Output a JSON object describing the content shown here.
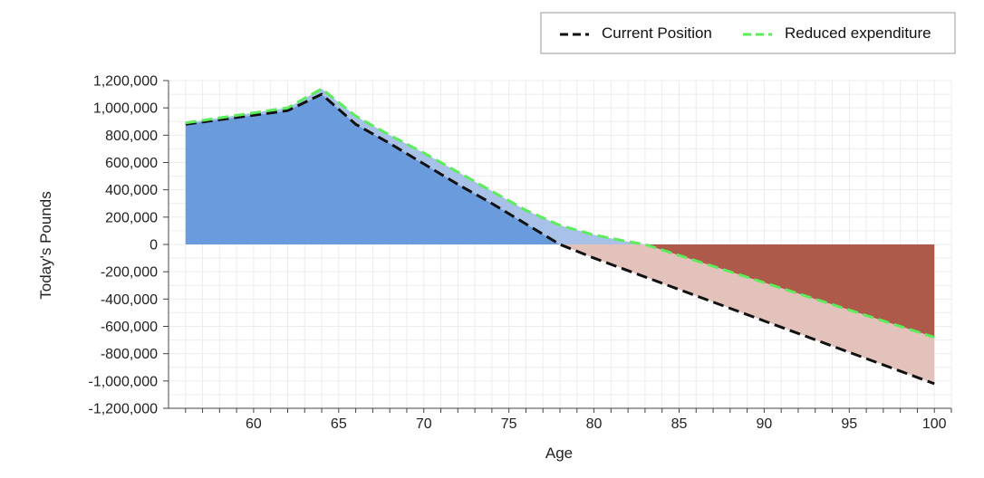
{
  "chart_data": {
    "type": "area",
    "xlabel": "Age",
    "ylabel": "Today's Pounds",
    "xlim": [
      55,
      101
    ],
    "ylim": [
      -1200000,
      1200000
    ],
    "x_ticks": [
      60,
      65,
      70,
      75,
      80,
      85,
      90,
      95,
      100
    ],
    "x_tick_labels": [
      "60",
      "65",
      "70",
      "75",
      "80",
      "85",
      "90",
      "95",
      "100"
    ],
    "y_ticks": [
      1200000,
      1000000,
      800000,
      600000,
      400000,
      200000,
      0,
      -200000,
      -400000,
      -600000,
      -800000,
      -1000000,
      -1200000
    ],
    "y_tick_labels": [
      "1,200,000",
      "1,000,000",
      "800,000",
      "600,000",
      "400,000",
      "200,000",
      "0",
      "-200,000",
      "-400,000",
      "-600,000",
      "-800,000",
      "-1,000,000",
      "-1,200,000"
    ],
    "grid": true,
    "legend_position": "top-right",
    "colors": {
      "positive_fill": "#6a9bdc",
      "positive_gap_fill": "#a7c1e8",
      "negative_fill": "#ad5a4a",
      "negative_gap_fill": "#e3c2bc",
      "current_line": "#111111",
      "reduced_line": "#5cec5c"
    },
    "series": [
      {
        "name": "Current Position",
        "style": "dashed",
        "color": "#111111",
        "x": [
          56,
          62,
          64,
          66,
          68,
          70,
          72,
          74,
          76,
          78,
          79,
          80,
          85,
          90,
          95,
          100
        ],
        "values": [
          880000,
          980000,
          1100000,
          880000,
          740000,
          590000,
          440000,
          300000,
          150000,
          0,
          -50000,
          -100000,
          -330000,
          -560000,
          -790000,
          -1020000
        ]
      },
      {
        "name": "Reduced expenditure",
        "style": "dashed",
        "color": "#5cec5c",
        "x": [
          56,
          62,
          64,
          66,
          68,
          70,
          72,
          74,
          76,
          78,
          80,
          82,
          83,
          85,
          90,
          95,
          100
        ],
        "values": [
          890000,
          1000000,
          1140000,
          940000,
          800000,
          670000,
          530000,
          390000,
          250000,
          140000,
          70000,
          20000,
          0,
          -80000,
          -280000,
          -480000,
          -680000
        ]
      }
    ]
  }
}
